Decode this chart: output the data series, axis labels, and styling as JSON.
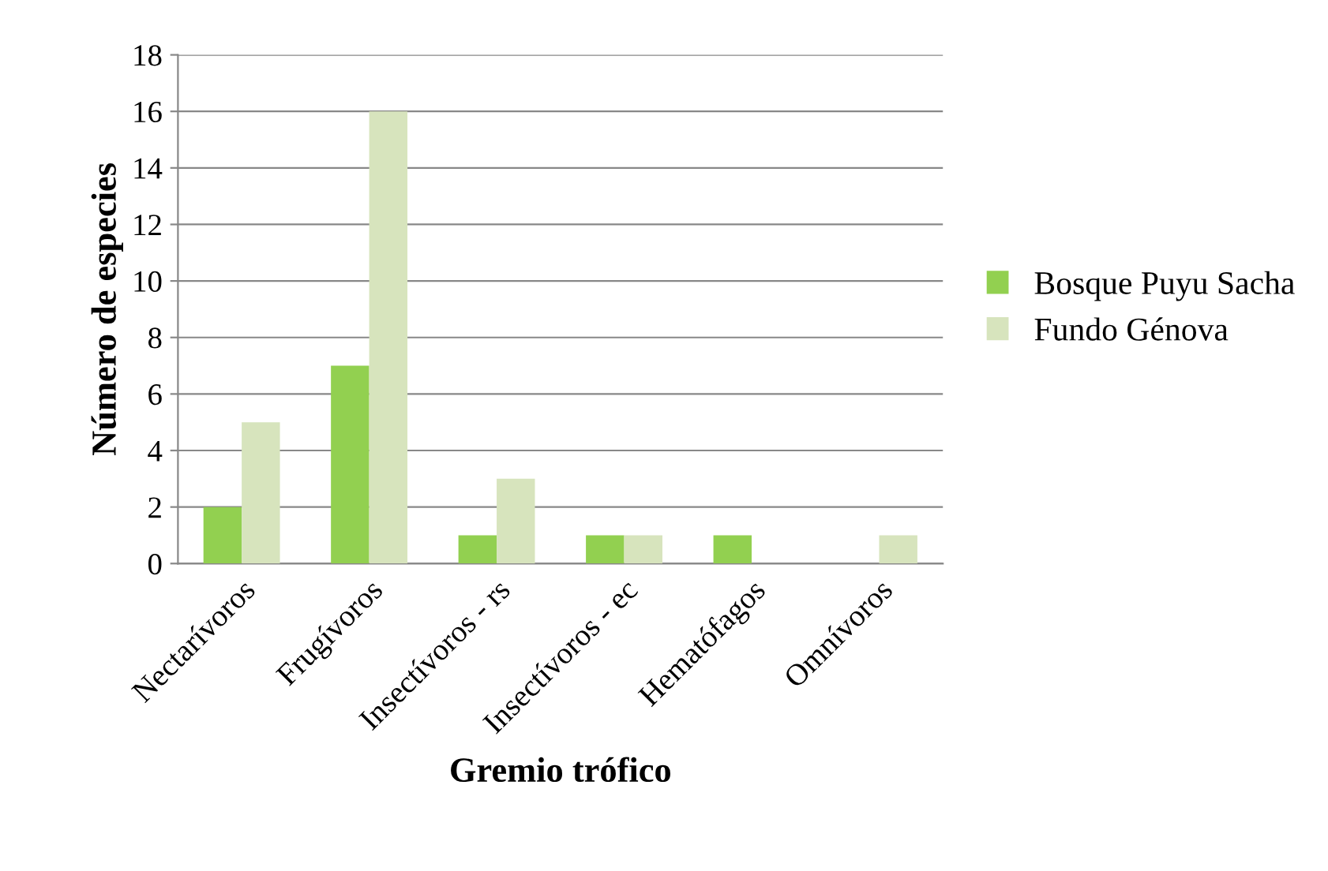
{
  "chart_data": {
    "type": "bar",
    "xlabel": "Gremio trófico",
    "ylabel": "Número de especies",
    "categories": [
      "Nectarívoros",
      "Frugívoros",
      "Insectívoros - rs",
      "Insectívoros - ec",
      "Hematófagos",
      "Omnívoros"
    ],
    "series": [
      {
        "name": "Bosque Puyu Sacha",
        "color": "#92d050",
        "values": [
          2,
          7,
          1,
          1,
          1,
          0
        ]
      },
      {
        "name": "Fundo Génova",
        "color": "#d7e4bd",
        "values": [
          5,
          16,
          3,
          1,
          0,
          1
        ]
      }
    ],
    "ylim": [
      0,
      18
    ],
    "yticks": [
      0,
      2,
      4,
      6,
      8,
      10,
      12,
      14,
      16,
      18
    ],
    "grid": "y",
    "legend": "right"
  }
}
